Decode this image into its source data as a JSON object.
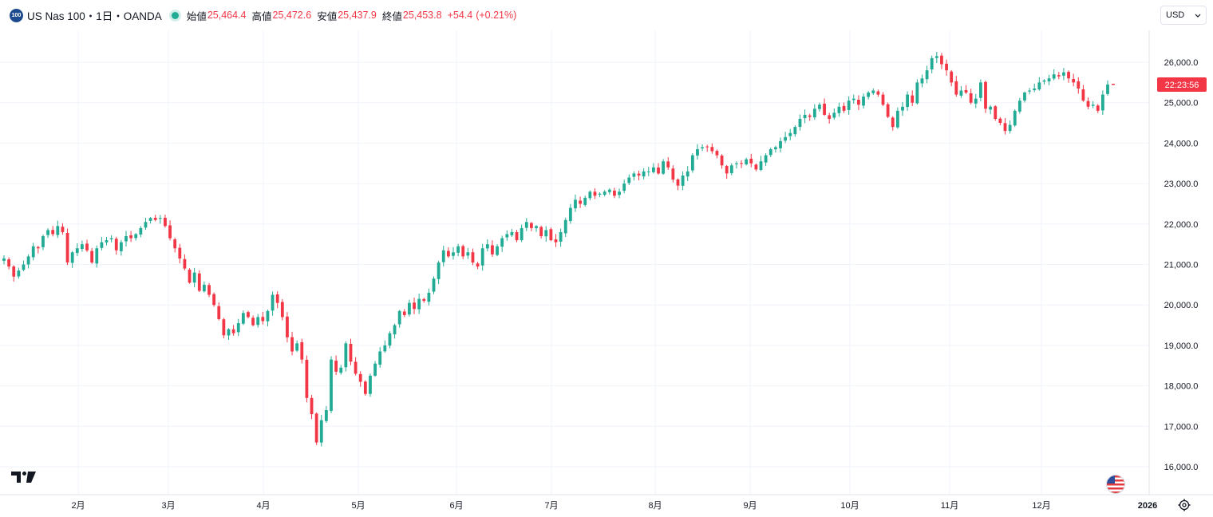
{
  "header": {
    "symbol_badge": "100",
    "symbol_title": "US Nas 100・1日・OANDA",
    "open_label": "始値",
    "open_value": "25,464.4",
    "high_label": "高値",
    "high_value": "25,472.6",
    "low_label": "安値",
    "low_value": "25,437.9",
    "close_label": "終値",
    "close_value": "25,453.8",
    "change_value": "+54.4",
    "change_pct": "(+0.21%)"
  },
  "currency": {
    "value": "USD"
  },
  "price_scale": {
    "labels": [
      "26,000.0",
      "25,000.0",
      "24,000.0",
      "23,000.0",
      "22,000.0",
      "21,000.0",
      "20,000.0",
      "19,000.0",
      "18,000.0",
      "17,000.0",
      "16,000.0"
    ],
    "countdown": "22:23:56"
  },
  "colors": {
    "up": "#22ab94",
    "down": "#f23645",
    "grid": "#f0f3fa"
  },
  "chart_data": {
    "type": "candlestick",
    "title": "US Nas 100・1日・OANDA",
    "ylim": [
      15800,
      26650
    ],
    "y_ticks": [
      26000,
      25000,
      24000,
      23000,
      22000,
      21000,
      20000,
      19000,
      18000,
      17000,
      16000
    ],
    "x_ticks": [
      "2月",
      "3月",
      "4月",
      "5月",
      "6月",
      "7月",
      "8月",
      "9月",
      "10月",
      "11月",
      "12月",
      "2026"
    ],
    "last_close": 25453.8,
    "closes": [
      21150,
      20950,
      20700,
      20850,
      21000,
      21200,
      21450,
      21400,
      21700,
      21850,
      21750,
      21950,
      21800,
      21050,
      21300,
      21400,
      21500,
      21350,
      21050,
      21400,
      21550,
      21600,
      21650,
      21350,
      21550,
      21700,
      21650,
      21750,
      21900,
      22050,
      22150,
      22100,
      22150,
      21950,
      21650,
      21400,
      21150,
      20900,
      20550,
      20800,
      20350,
      20500,
      20250,
      20000,
      19650,
      19250,
      19400,
      19300,
      19550,
      19800,
      19700,
      19500,
      19700,
      19600,
      19850,
      20250,
      20050,
      19700,
      19200,
      18850,
      19050,
      18650,
      17700,
      17300,
      16600,
      17150,
      17400,
      18650,
      18350,
      18450,
      19050,
      18600,
      18300,
      18100,
      17800,
      18250,
      18550,
      18850,
      19000,
      19300,
      19500,
      19850,
      19750,
      20050,
      19900,
      20150,
      20100,
      20300,
      20650,
      21050,
      21350,
      21200,
      21300,
      21450,
      21200,
      21300,
      21050,
      20950,
      21400,
      21500,
      21250,
      21450,
      21650,
      21750,
      21800,
      21600,
      21900,
      22050,
      21900,
      21950,
      21700,
      21850,
      21600,
      21550,
      21800,
      22100,
      22400,
      22600,
      22500,
      22650,
      22800,
      22700,
      22750,
      22800,
      22850,
      22700,
      22800,
      23000,
      23150,
      23250,
      23200,
      23300,
      23300,
      23400,
      23250,
      23550,
      23400,
      23100,
      22950,
      23200,
      23300,
      23700,
      23850,
      23900,
      23900,
      23800,
      23700,
      23450,
      23250,
      23450,
      23500,
      23500,
      23600,
      23500,
      23350,
      23550,
      23700,
      23850,
      23900,
      24050,
      24150,
      24250,
      24400,
      24600,
      24700,
      24650,
      24850,
      24950,
      24700,
      24600,
      24750,
      24900,
      24800,
      25050,
      25100,
      24950,
      25150,
      25250,
      25300,
      25200,
      24950,
      24650,
      24400,
      24800,
      24900,
      25200,
      25000,
      25500,
      25600,
      25800,
      26100,
      26150,
      25950,
      25800,
      25500,
      25200,
      25300,
      25250,
      25000,
      25100,
      25500,
      24850,
      24900,
      24600,
      24500,
      24300,
      24450,
      24800,
      25050,
      25250,
      25300,
      25350,
      25500,
      25550,
      25600,
      25700,
      25650,
      25750,
      25600,
      25500,
      25350,
      25050,
      24900,
      24950,
      24800,
      25200,
      25450
    ]
  }
}
